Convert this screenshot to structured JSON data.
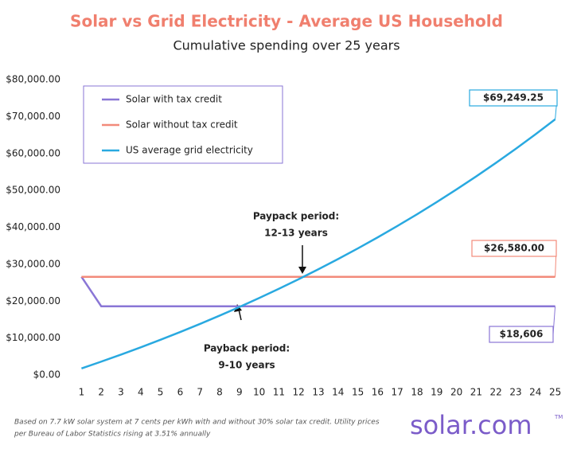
{
  "chart_data": {
    "type": "line",
    "title": "Solar vs Grid Electricity - Average US Household",
    "subtitle": "Cumulative spending over 25 years",
    "x": [
      1,
      2,
      3,
      4,
      5,
      6,
      7,
      8,
      9,
      10,
      11,
      12,
      13,
      14,
      15,
      16,
      17,
      18,
      19,
      20,
      21,
      22,
      23,
      24,
      25
    ],
    "series": [
      {
        "name": "Solar with tax credit",
        "color": "#8a76d6",
        "values": [
          26580,
          18606,
          18606,
          18606,
          18606,
          18606,
          18606,
          18606,
          18606,
          18606,
          18606,
          18606,
          18606,
          18606,
          18606,
          18606,
          18606,
          18606,
          18606,
          18606,
          18606,
          18606,
          18606,
          18606,
          18606
        ],
        "value_labels": [
          null,
          null,
          null,
          null,
          null,
          null,
          null,
          null,
          null,
          null,
          null,
          null,
          null,
          null,
          null,
          null,
          null,
          null,
          null,
          null,
          null,
          null,
          null,
          null,
          "$18,606"
        ]
      },
      {
        "name": "Solar without tax credit",
        "color": "#f28a7a",
        "values": [
          26580,
          26580,
          26580,
          26580,
          26580,
          26580,
          26580,
          26580,
          26580,
          26580,
          26580,
          26580,
          26580,
          26580,
          26580,
          26580,
          26580,
          26580,
          26580,
          26580,
          26580,
          26580,
          26580,
          26580,
          26580
        ],
        "value_labels": [
          null,
          null,
          null,
          null,
          null,
          null,
          null,
          null,
          null,
          null,
          null,
          null,
          null,
          null,
          null,
          null,
          null,
          null,
          null,
          null,
          null,
          null,
          null,
          null,
          "$26,580.00"
        ]
      },
      {
        "name": "US average grid electricity",
        "color": "#29a9e0",
        "values": [
          1775,
          3612,
          5514,
          7483,
          9520,
          11630,
          13813,
          16073,
          18412,
          20833,
          23340,
          25934,
          28619,
          31399,
          34276,
          37254,
          40337,
          43528,
          46830,
          50249,
          53788,
          57451,
          61242,
          65167,
          69249.25
        ],
        "value_labels": [
          null,
          null,
          null,
          null,
          null,
          null,
          null,
          null,
          null,
          null,
          null,
          null,
          null,
          null,
          null,
          null,
          null,
          null,
          null,
          null,
          null,
          null,
          null,
          null,
          "$69,249.25"
        ]
      }
    ],
    "xlim": [
      0.5,
      25.5
    ],
    "xticks": [
      1,
      2,
      3,
      4,
      5,
      6,
      7,
      8,
      9,
      10,
      11,
      12,
      13,
      14,
      15,
      16,
      17,
      18,
      19,
      20,
      21,
      22,
      23,
      24,
      25
    ],
    "ylim": [
      0,
      80000
    ],
    "yticks": [
      {
        "value": 0,
        "label": "$0.00"
      },
      {
        "value": 10000,
        "label": "$10,000.00"
      },
      {
        "value": 20000,
        "label": "$20,000.00"
      },
      {
        "value": 30000,
        "label": "$30,000.00"
      },
      {
        "value": 40000,
        "label": "$40,000.00"
      },
      {
        "value": 50000,
        "label": "$50,000.00"
      },
      {
        "value": 60000,
        "label": "$60,000.00"
      },
      {
        "value": 70000,
        "label": "$70,000.00"
      },
      {
        "value": 80000,
        "label": "$80,000.00"
      }
    ],
    "grid": false,
    "legend": "upper-left",
    "annotations": [
      {
        "lines": [
          "Paypack period:",
          "12-13 years"
        ]
      },
      {
        "lines": [
          "Payback period:",
          "9-10 years"
        ]
      }
    ],
    "footnote": [
      "Based on 7.7 kW solar system at 7 cents per kWh with and without 30% solar tax credit. Utility prices",
      "per Bureau of Labor Statistics rising at 3.51% annually"
    ],
    "logo": "solar.com",
    "logo_mark": "TM"
  }
}
